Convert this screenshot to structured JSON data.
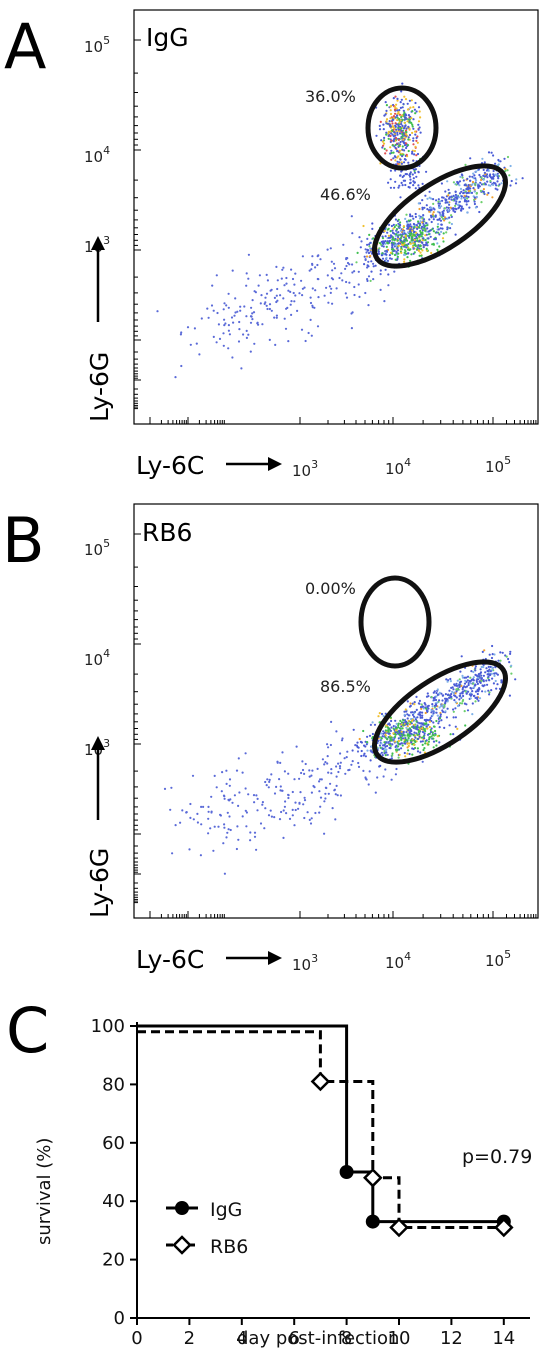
{
  "figure": {
    "panels": [
      {
        "letter": "A",
        "sample": "IgG",
        "gate_upper_pct": "36.0%",
        "gate_lower_pct": "46.6%"
      },
      {
        "letter": "B",
        "sample": "RB6",
        "gate_upper_pct": "0.00%",
        "gate_lower_pct": "86.5%"
      }
    ],
    "flow_axes": {
      "x_label": "Ly-6C",
      "y_label": "Ly-6G",
      "x_ticks": [
        "3",
        "4",
        "5"
      ],
      "y_ticks": [
        "3",
        "4",
        "5"
      ],
      "tick_base": "10"
    },
    "survival": {
      "letter": "C",
      "p_value": "p=0.79"
    }
  },
  "chart_data": [
    {
      "type": "scatter",
      "panel": "A",
      "title": "IgG",
      "xlabel": "Ly-6C",
      "ylabel": "Ly-6G",
      "x_scale": "log",
      "y_scale": "log",
      "xlim": [
        0,
        200000
      ],
      "ylim": [
        0,
        200000
      ],
      "gates": [
        {
          "label": "36.0%",
          "value": 36.0
        },
        {
          "label": "46.6%",
          "value": 46.6
        }
      ]
    },
    {
      "type": "scatter",
      "panel": "B",
      "title": "RB6",
      "xlabel": "Ly-6C",
      "ylabel": "Ly-6G",
      "x_scale": "log",
      "y_scale": "log",
      "xlim": [
        0,
        200000
      ],
      "ylim": [
        0,
        200000
      ],
      "gates": [
        {
          "label": "0.00%",
          "value": 0.0
        },
        {
          "label": "86.5%",
          "value": 86.5
        }
      ]
    },
    {
      "type": "line",
      "panel": "C",
      "xlabel": "day post-infection",
      "ylabel": "survival (%)",
      "xlim": [
        0,
        15
      ],
      "ylim": [
        0,
        100
      ],
      "x_ticks": [
        0,
        2,
        4,
        6,
        8,
        10,
        12,
        14
      ],
      "y_ticks": [
        0,
        20,
        40,
        60,
        80,
        100
      ],
      "legend_position": "bottom-left",
      "annotation": "p=0.79",
      "series": [
        {
          "name": "IgG",
          "style": "solid",
          "marker": "filled-circle",
          "steps": [
            [
              0,
              100
            ],
            [
              8,
              100
            ],
            [
              8,
              50
            ],
            [
              9,
              50
            ],
            [
              9,
              33
            ],
            [
              14,
              33
            ]
          ],
          "points": [
            [
              8,
              50
            ],
            [
              9,
              33
            ],
            [
              14,
              33
            ]
          ]
        },
        {
          "name": "RB6",
          "style": "dashed",
          "marker": "open-diamond",
          "steps": [
            [
              0,
              98
            ],
            [
              7,
              98
            ],
            [
              7,
              81
            ],
            [
              9,
              81
            ],
            [
              9,
              48
            ],
            [
              10,
              48
            ],
            [
              10,
              31
            ],
            [
              14,
              31
            ]
          ],
          "points": [
            [
              7,
              81
            ],
            [
              9,
              48
            ],
            [
              10,
              31
            ],
            [
              14,
              31
            ]
          ]
        }
      ]
    }
  ]
}
